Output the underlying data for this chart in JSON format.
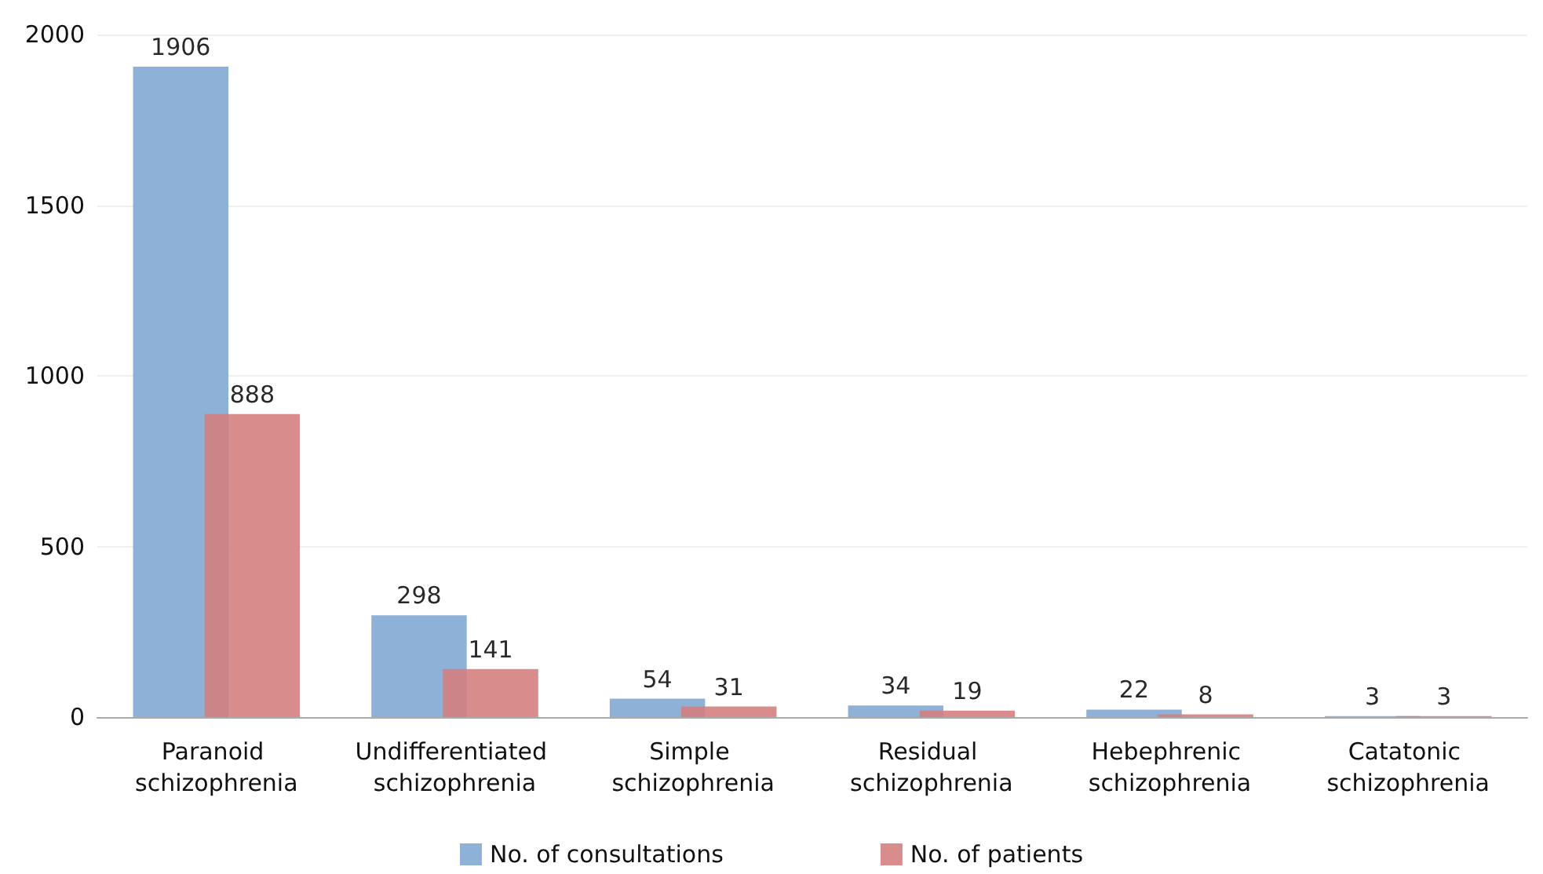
{
  "chart_data": {
    "type": "bar",
    "categories": [
      "Paranoid schizophrenia",
      "Undifferentiated schizophrenia",
      "Simple schizophrenia",
      "Residual schizophrenia",
      "Hebephrenic schizophrenia",
      "Catatonic schizophrenia"
    ],
    "series": [
      {
        "name": "No. of consultations",
        "color": "#82a8d4",
        "values": [
          1906,
          298,
          54,
          34,
          22,
          3
        ]
      },
      {
        "name": "No. of patients",
        "color": "#d47f7f",
        "values": [
          888,
          141,
          31,
          19,
          8,
          3
        ]
      }
    ],
    "ylim": [
      0,
      2000
    ],
    "yticks": [
      0,
      500,
      1000,
      1500,
      2000
    ],
    "grid": "y",
    "legend": "bottom",
    "data_labels": true
  }
}
